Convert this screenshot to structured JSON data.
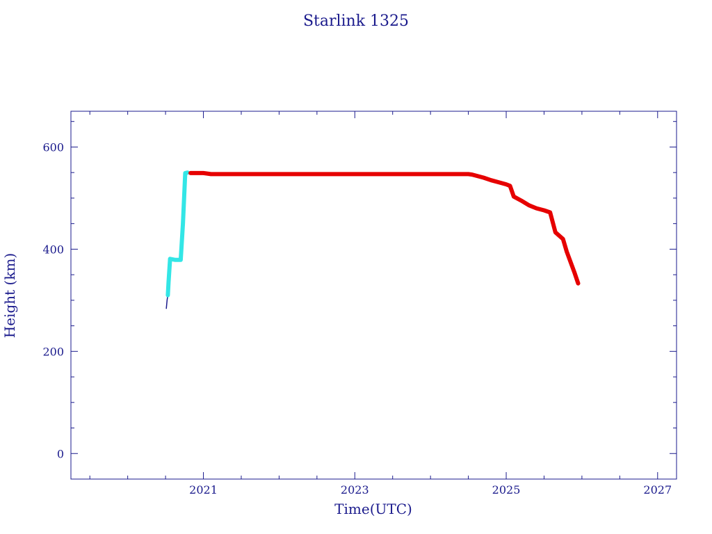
{
  "chart_data": {
    "type": "line",
    "title": "Starlink 1325",
    "xlabel": "Time(UTC)",
    "ylabel": "Height (km)",
    "xlim": [
      2019.25,
      2027.25
    ],
    "ylim": [
      -50,
      670
    ],
    "xticks": [
      2021,
      2023,
      2025,
      2027
    ],
    "xtick_labels": [
      "2021",
      "2023",
      "2025",
      "2027"
    ],
    "yticks": [
      0,
      200,
      400,
      600
    ],
    "ytick_labels": [
      "0",
      "200",
      "400",
      "600"
    ],
    "grid": false,
    "axis_color": "#1a1a8c",
    "series": [
      {
        "color": "#1a1a8c",
        "points": [
          [
            2020.51,
            284
          ],
          [
            2020.52,
            300
          ],
          [
            2020.53,
            310
          ]
        ]
      },
      {
        "color": "#33e6e6",
        "points": [
          [
            2020.53,
            310
          ],
          [
            2020.54,
            335
          ],
          [
            2020.56,
            381
          ],
          [
            2020.63,
            379
          ],
          [
            2020.7,
            379
          ],
          [
            2020.73,
            450
          ],
          [
            2020.76,
            549
          ],
          [
            2020.79,
            550
          ]
        ]
      },
      {
        "color": "#e60000",
        "points": [
          [
            2020.83,
            549
          ],
          [
            2021.0,
            549
          ],
          [
            2021.05,
            548
          ],
          [
            2021.1,
            547
          ],
          [
            2021.5,
            547
          ],
          [
            2022.0,
            547
          ],
          [
            2022.5,
            547
          ],
          [
            2023.0,
            547
          ],
          [
            2023.5,
            547
          ],
          [
            2024.0,
            547
          ],
          [
            2024.5,
            547
          ],
          [
            2024.55,
            546
          ],
          [
            2024.7,
            540
          ],
          [
            2024.8,
            535
          ],
          [
            2024.9,
            531
          ],
          [
            2025.0,
            527
          ],
          [
            2025.05,
            524
          ],
          [
            2025.1,
            503
          ],
          [
            2025.2,
            495
          ],
          [
            2025.3,
            486
          ],
          [
            2025.4,
            480
          ],
          [
            2025.5,
            476
          ],
          [
            2025.58,
            472
          ],
          [
            2025.65,
            433
          ],
          [
            2025.75,
            420
          ],
          [
            2025.8,
            395
          ],
          [
            2025.9,
            355
          ],
          [
            2025.95,
            333
          ]
        ]
      }
    ]
  }
}
